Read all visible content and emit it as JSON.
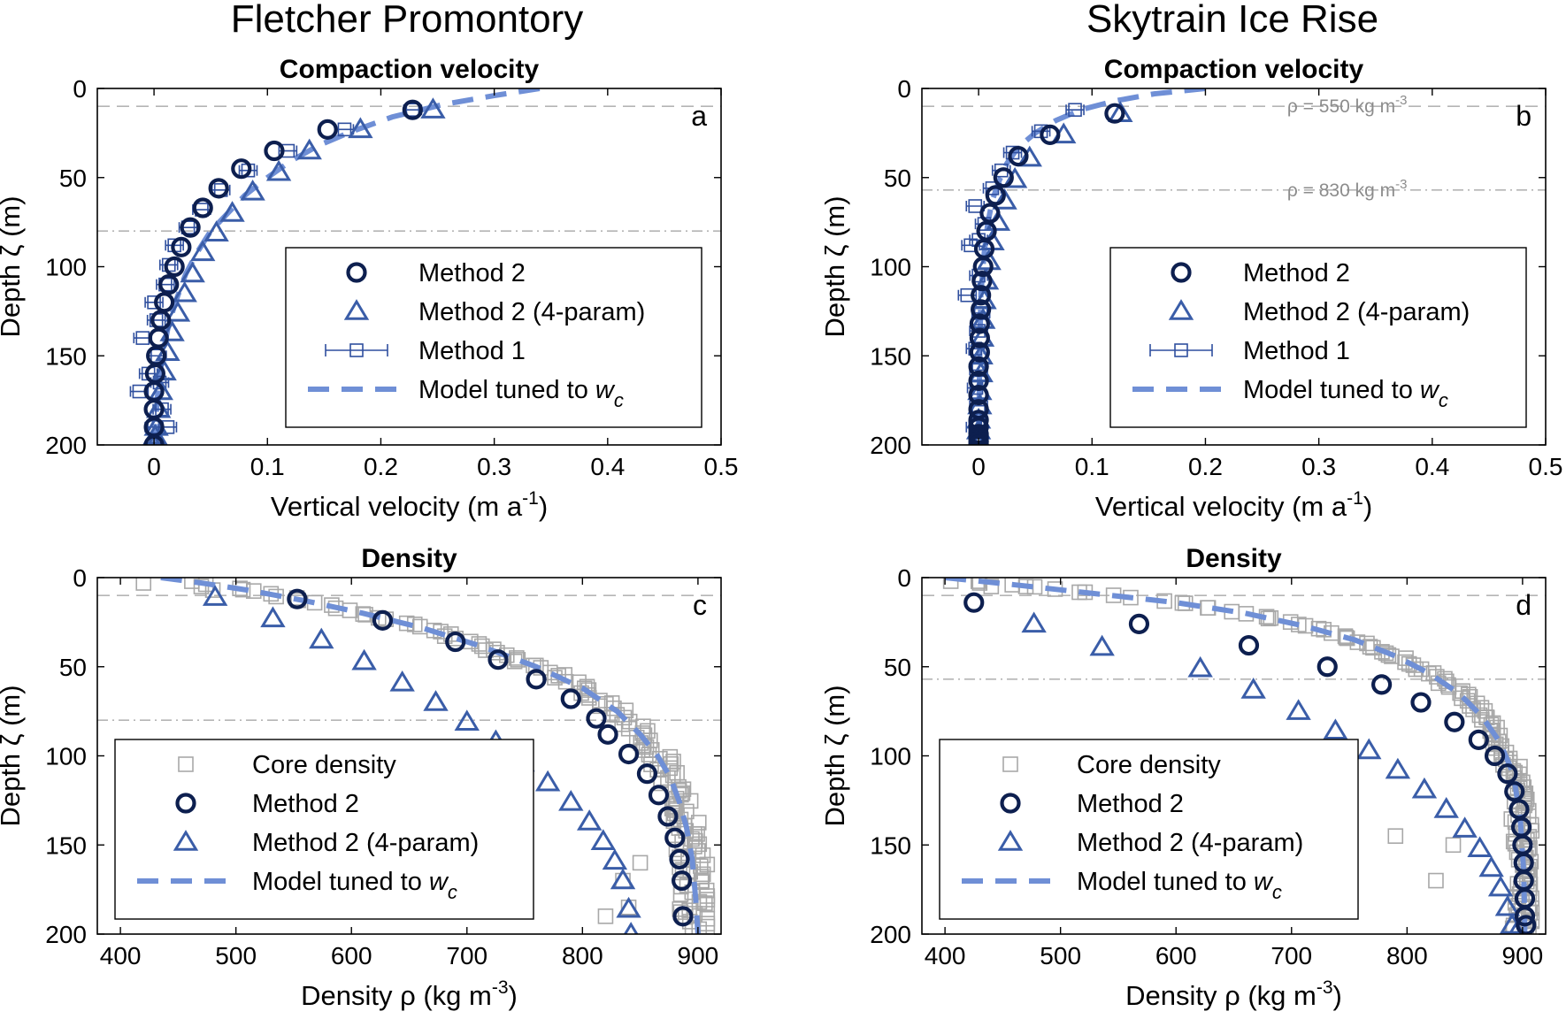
{
  "figure": {
    "column_titles": [
      "Fletcher Promontory",
      "Skytrain Ice Rise"
    ]
  },
  "colors": {
    "method2": "#0d1f4f",
    "method2_4param": "#3a5da8",
    "method1": "#2f4f9e",
    "model": "#6f8fd6",
    "core": "#a8a8a8",
    "refline": "#b5b5b5"
  },
  "legend": {
    "velocity": [
      {
        "key": "method2",
        "label": "Method 2",
        "marker": "circle"
      },
      {
        "key": "method2_4param",
        "label": "Method 2 (4-param)",
        "marker": "triangle"
      },
      {
        "key": "method1",
        "label": "Method 1",
        "marker": "square-errorbar"
      },
      {
        "key": "model",
        "label": "Model tuned to ",
        "label_var": "w",
        "label_sub": "c",
        "marker": "dashed-line"
      }
    ],
    "density": [
      {
        "key": "core",
        "label": "Core density",
        "marker": "square"
      },
      {
        "key": "method2",
        "label": "Method 2",
        "marker": "circle"
      },
      {
        "key": "method2_4param",
        "label": "Method 2 (4-param)",
        "marker": "triangle"
      },
      {
        "key": "model",
        "label": "Model tuned to ",
        "label_var": "w",
        "label_sub": "c",
        "marker": "dashed-line"
      }
    ]
  },
  "chart_data": [
    {
      "id": "a",
      "type": "scatter",
      "column": 0,
      "row": 0,
      "title": "Compaction velocity",
      "letter": "a",
      "xlabel": "Vertical velocity (m a",
      "xlabel_sup": "-1",
      "xlabel_tail": ")",
      "ylabel": "Depth ζ (m)",
      "xlim": [
        -0.05,
        0.5
      ],
      "ylim": [
        0,
        200
      ],
      "y_inverted": true,
      "xticks": [
        0,
        0.1,
        0.2,
        0.3,
        0.4,
        0.5
      ],
      "yticks": [
        0,
        50,
        100,
        150,
        200
      ],
      "legend_position": "center-right",
      "ref_lines": [
        {
          "depth": 10,
          "style": "dashed"
        },
        {
          "depth": 80,
          "style": "dashdot"
        }
      ],
      "annotations": [],
      "series": [
        {
          "key": "method2",
          "x": [
            0.228,
            0.153,
            0.106,
            0.077,
            0.057,
            0.043,
            0.032,
            0.024,
            0.018,
            0.013,
            0.009,
            0.006,
            0.004,
            0.002,
            0.001,
            0.0,
            0.0,
            0.0,
            0.0
          ],
          "y": [
            12,
            23,
            35,
            45,
            56,
            67,
            78,
            89,
            100,
            110,
            120,
            130,
            140,
            150,
            160,
            170,
            180,
            190,
            200
          ]
        },
        {
          "key": "method2_4param",
          "x": [
            0.246,
            0.182,
            0.137,
            0.11,
            0.087,
            0.069,
            0.055,
            0.043,
            0.034,
            0.027,
            0.021,
            0.016,
            0.012,
            0.009,
            0.006,
            0.004,
            0.002,
            0.001,
            0.0
          ],
          "y": [
            12,
            23,
            35,
            47,
            58,
            70,
            81,
            92,
            104,
            115,
            126,
            137,
            148,
            159,
            170,
            180,
            190,
            195,
            200
          ]
        },
        {
          "key": "method1",
          "x": [
            0.228,
            0.168,
            0.118,
            0.083,
            0.059,
            0.042,
            0.03,
            0.018,
            0.013,
            0.01,
            0.0,
            0.002,
            -0.01,
            0.003,
            -0.005,
            0.005,
            -0.013,
            0.007,
            0.0,
            0.012
          ],
          "y": [
            12,
            23,
            35,
            46,
            57,
            68,
            78,
            88,
            99,
            110,
            120,
            130,
            140,
            150,
            160,
            165,
            170,
            180,
            190,
            190
          ]
        },
        {
          "key": "model",
          "x": [
            0.34,
            0.3,
            0.255,
            0.21,
            0.175,
            0.145,
            0.12,
            0.1,
            0.08,
            0.065,
            0.05,
            0.038,
            0.028,
            0.02,
            0.013,
            0.008,
            0.004,
            0.002,
            0.0
          ],
          "y": [
            0,
            4,
            9,
            16,
            24,
            32,
            41,
            50,
            60,
            70,
            80,
            92,
            104,
            118,
            132,
            148,
            165,
            182,
            200
          ]
        }
      ]
    },
    {
      "id": "b",
      "type": "scatter",
      "column": 1,
      "row": 0,
      "title": "Compaction velocity",
      "letter": "b",
      "xlabel": "Vertical velocity (m a",
      "xlabel_sup": "-1",
      "xlabel_tail": ")",
      "ylabel": "Depth ζ (m)",
      "xlim": [
        -0.05,
        0.5
      ],
      "ylim": [
        0,
        200
      ],
      "y_inverted": true,
      "xticks": [
        0,
        0.1,
        0.2,
        0.3,
        0.4,
        0.5
      ],
      "yticks": [
        0,
        50,
        100,
        150,
        200
      ],
      "legend_position": "center-right",
      "ref_lines": [
        {
          "depth": 10,
          "style": "dashed"
        },
        {
          "depth": 57,
          "style": "dashdot"
        }
      ],
      "annotations": [
        {
          "text": "ρ = 550 kg m",
          "sup": "-3",
          "depth": 10
        },
        {
          "text": "ρ = 830 kg m",
          "sup": "-3",
          "depth": 57
        }
      ],
      "series": [
        {
          "key": "method2",
          "x": [
            0.12,
            0.063,
            0.035,
            0.022,
            0.015,
            0.01,
            0.007,
            0.005,
            0.004,
            0.003,
            0.002,
            0.002,
            0.001,
            0.001,
            0.001,
            0.0,
            0.0,
            0.0,
            0.0,
            0.0,
            0.0,
            0.0,
            0.0,
            0.0,
            0.0,
            0.0
          ],
          "y": [
            14,
            26,
            38,
            50,
            60,
            70,
            80,
            90,
            100,
            108,
            116,
            124,
            132,
            140,
            148,
            156,
            164,
            172,
            180,
            186,
            190,
            194,
            196,
            198,
            200,
            200
          ]
        },
        {
          "key": "method2_4param",
          "x": [
            0.125,
            0.075,
            0.045,
            0.032,
            0.023,
            0.017,
            0.012,
            0.009,
            0.007,
            0.005,
            0.004,
            0.003,
            0.002,
            0.002,
            0.001,
            0.001,
            0.0,
            0.0,
            0.0,
            0.0
          ],
          "y": [
            14,
            26,
            39,
            51,
            63,
            75,
            86,
            97,
            108,
            119,
            130,
            140,
            150,
            160,
            170,
            178,
            186,
            192,
            197,
            200
          ]
        },
        {
          "key": "method1",
          "x": [
            0.085,
            0.055,
            0.03,
            0.02,
            0.012,
            -0.003,
            0.005,
            0.0,
            -0.007,
            0.0,
            -0.01,
            0.002,
            0.0,
            -0.003,
            0.0,
            -0.002,
            0.0,
            -0.003,
            0.0
          ],
          "y": [
            12,
            24,
            36,
            46,
            56,
            66,
            76,
            85,
            88,
            105,
            116,
            126,
            136,
            146,
            158,
            168,
            178,
            190,
            198
          ]
        },
        {
          "key": "model",
          "x": [
            0.2,
            0.155,
            0.12,
            0.09,
            0.068,
            0.05,
            0.035,
            0.025,
            0.018,
            0.012,
            0.008,
            0.005,
            0.002,
            0.001,
            0.0
          ],
          "y": [
            0,
            3,
            7,
            12,
            18,
            25,
            33,
            42,
            52,
            63,
            76,
            92,
            115,
            150,
            200
          ]
        }
      ]
    },
    {
      "id": "c",
      "type": "scatter",
      "column": 0,
      "row": 1,
      "title": "Density",
      "letter": "c",
      "xlabel": "Density ρ (kg m",
      "xlabel_sup": "-3",
      "xlabel_tail": ")",
      "ylabel": "Depth ζ (m)",
      "xlim": [
        380,
        920
      ],
      "ylim": [
        0,
        200
      ],
      "y_inverted": true,
      "xticks": [
        400,
        500,
        600,
        700,
        800,
        900
      ],
      "yticks": [
        0,
        50,
        100,
        150,
        200
      ],
      "legend_position": "center-left",
      "ref_lines": [
        {
          "depth": 10,
          "style": "dashed"
        },
        {
          "depth": 80,
          "style": "dashdot"
        }
      ],
      "annotations": [],
      "series": [
        {
          "key": "core",
          "generated_from": "model",
          "noise": 14,
          "count": 150,
          "extra_points": [
            [
              420,
              3
            ],
            [
              470,
              5
            ],
            [
              480,
              7
            ],
            [
              835,
              170
            ],
            [
              840,
              185
            ],
            [
              820,
              190
            ],
            [
              850,
              160
            ]
          ]
        },
        {
          "key": "method2",
          "x": [
            553,
            627,
            690,
            727,
            760,
            790,
            812,
            822,
            840,
            856,
            866,
            874,
            880,
            884,
            886,
            887
          ],
          "y": [
            12,
            24,
            36,
            46,
            57,
            68,
            79,
            88,
            99,
            110,
            122,
            134,
            146,
            158,
            170,
            190
          ]
        },
        {
          "key": "method2_4param",
          "x": [
            482,
            532,
            574,
            611,
            644,
            673,
            700,
            725,
            748,
            770,
            790,
            806,
            818,
            828,
            835,
            840,
            842
          ],
          "y": [
            11,
            23,
            35,
            47,
            59,
            70,
            81,
            92,
            104,
            115,
            126,
            137,
            148,
            159,
            170,
            186,
            200
          ]
        },
        {
          "key": "model",
          "x": [
            435,
            470,
            510,
            560,
            610,
            660,
            710,
            760,
            800,
            830,
            850,
            865,
            876,
            884,
            890,
            895,
            898,
            900
          ],
          "y": [
            0,
            3,
            7,
            13,
            20,
            28,
            38,
            50,
            62,
            75,
            88,
            100,
            112,
            126,
            140,
            158,
            180,
            200
          ]
        }
      ]
    },
    {
      "id": "d",
      "type": "scatter",
      "column": 1,
      "row": 1,
      "title": "Density",
      "letter": "d",
      "xlabel": "Density ρ (kg m",
      "xlabel_sup": "-3",
      "xlabel_tail": ")",
      "ylabel": "Depth ζ (m)",
      "xlim": [
        380,
        920
      ],
      "ylim": [
        0,
        200
      ],
      "y_inverted": true,
      "xticks": [
        400,
        500,
        600,
        700,
        800,
        900
      ],
      "yticks": [
        0,
        50,
        100,
        150,
        200
      ],
      "legend_position": "center-left",
      "ref_lines": [
        {
          "depth": 10,
          "style": "dashed"
        },
        {
          "depth": 57,
          "style": "dashdot"
        }
      ],
      "annotations": [],
      "series": [
        {
          "key": "core",
          "generated_from": "model",
          "noise": 10,
          "count": 160,
          "extra_points": [
            [
              405,
              2
            ],
            [
              430,
              3
            ],
            [
              440,
              5
            ],
            [
              470,
              5
            ],
            [
              790,
              145
            ],
            [
              745,
              120
            ],
            [
              840,
              150
            ],
            [
              825,
              170
            ]
          ]
        },
        {
          "key": "method2",
          "x": [
            425,
            568,
            663,
            731,
            778,
            812,
            841,
            862,
            876,
            887,
            893,
            897,
            899,
            900,
            901,
            901,
            902,
            902,
            903
          ],
          "y": [
            14,
            26,
            38,
            50,
            60,
            70,
            81,
            91,
            100,
            110,
            120,
            130,
            140,
            150,
            160,
            170,
            180,
            190,
            195
          ]
        },
        {
          "key": "method2_4param",
          "x": [
            477,
            536,
            621,
            667,
            706,
            738,
            767,
            792,
            815,
            834,
            850,
            863,
            873,
            881,
            887,
            891,
            894
          ],
          "y": [
            26,
            39,
            51,
            63,
            75,
            86,
            97,
            108,
            119,
            130,
            141,
            152,
            163,
            174,
            185,
            195,
            200
          ]
        },
        {
          "key": "model",
          "x": [
            400,
            460,
            530,
            600,
            660,
            710,
            755,
            790,
            820,
            845,
            865,
            880,
            892,
            898,
            901,
            902
          ],
          "y": [
            0,
            4,
            9,
            14,
            20,
            27,
            35,
            44,
            54,
            65,
            78,
            92,
            110,
            135,
            165,
            200
          ]
        }
      ]
    }
  ]
}
